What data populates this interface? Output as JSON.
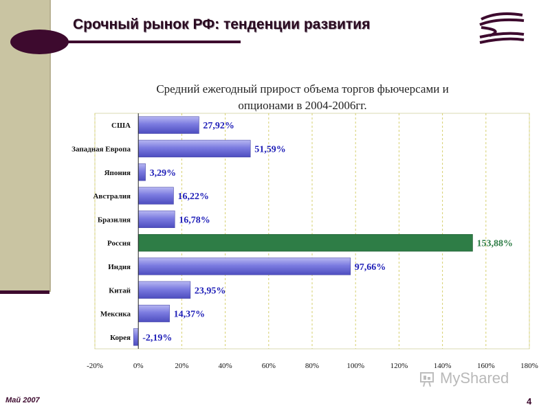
{
  "slide": {
    "title": "Срочный рынок РФ: тенденции развития",
    "footer_date": "Май 2007",
    "page_number": "4",
    "watermark": "MyShared"
  },
  "colors": {
    "bar": "#7b7be0",
    "bar_highlight": "#2e7d46",
    "label": "#2020b8",
    "label_highlight": "#2e7d46",
    "accent": "#3d0a2e",
    "sidebar": "#c9c4a2"
  },
  "chart_data": {
    "type": "bar",
    "orientation": "horizontal",
    "title_lines": [
      "Средний ежегодный прирост объема торгов фьючерсами и",
      "опционами в 2004-2006гг."
    ],
    "categories": [
      "США",
      "Западная Европа",
      "Япония",
      "Австралия",
      "Бразилия",
      "Россия",
      "Индия",
      "Китай",
      "Мексика",
      "Корея"
    ],
    "values": [
      27.92,
      51.59,
      3.29,
      16.22,
      16.78,
      153.88,
      97.66,
      23.95,
      14.37,
      -2.19
    ],
    "value_labels": [
      "27,92%",
      "51,59%",
      "3,29%",
      "16,22%",
      "16,78%",
      "153,88%",
      "97,66%",
      "23,95%",
      "14,37%",
      "-2,19%"
    ],
    "highlight": "Россия",
    "xlim": [
      -20,
      180
    ],
    "xticks": [
      -20,
      0,
      20,
      40,
      60,
      80,
      100,
      120,
      140,
      160,
      180
    ],
    "xtick_labels": [
      "-20%",
      "0%",
      "20%",
      "40%",
      "60%",
      "80%",
      "100%",
      "120%",
      "140%",
      "160%",
      "180%"
    ],
    "grid": "vertical dashed"
  }
}
